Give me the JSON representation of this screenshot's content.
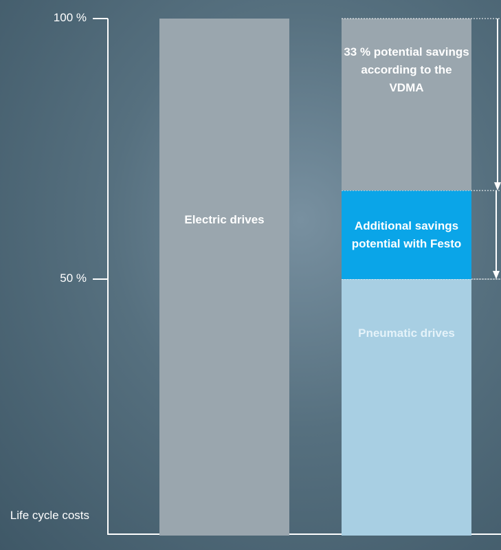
{
  "chart_data": {
    "type": "stacked-bar",
    "y_label": "Life cycle costs",
    "categories": [
      null,
      null
    ],
    "series": [
      {
        "name": "Electric drives",
        "color": "#9aa6ae",
        "values": [
          100,
          null
        ]
      },
      {
        "name": "Pneumatic drives",
        "color": "#a8cfe3",
        "values": [
          null,
          50
        ]
      },
      {
        "name": "Additional savings potential with Festo",
        "color": "#0aa5e8",
        "values": [
          null,
          17
        ]
      },
      {
        "name": "33 % potential savings according to the VDMA",
        "color": "#9aa6ae",
        "values": [
          null,
          33
        ]
      }
    ],
    "ylim": [
      0,
      100
    ],
    "yticks": [
      {
        "value": 50,
        "label": "50 %"
      },
      {
        "value": 100,
        "label": "100 %"
      }
    ]
  }
}
